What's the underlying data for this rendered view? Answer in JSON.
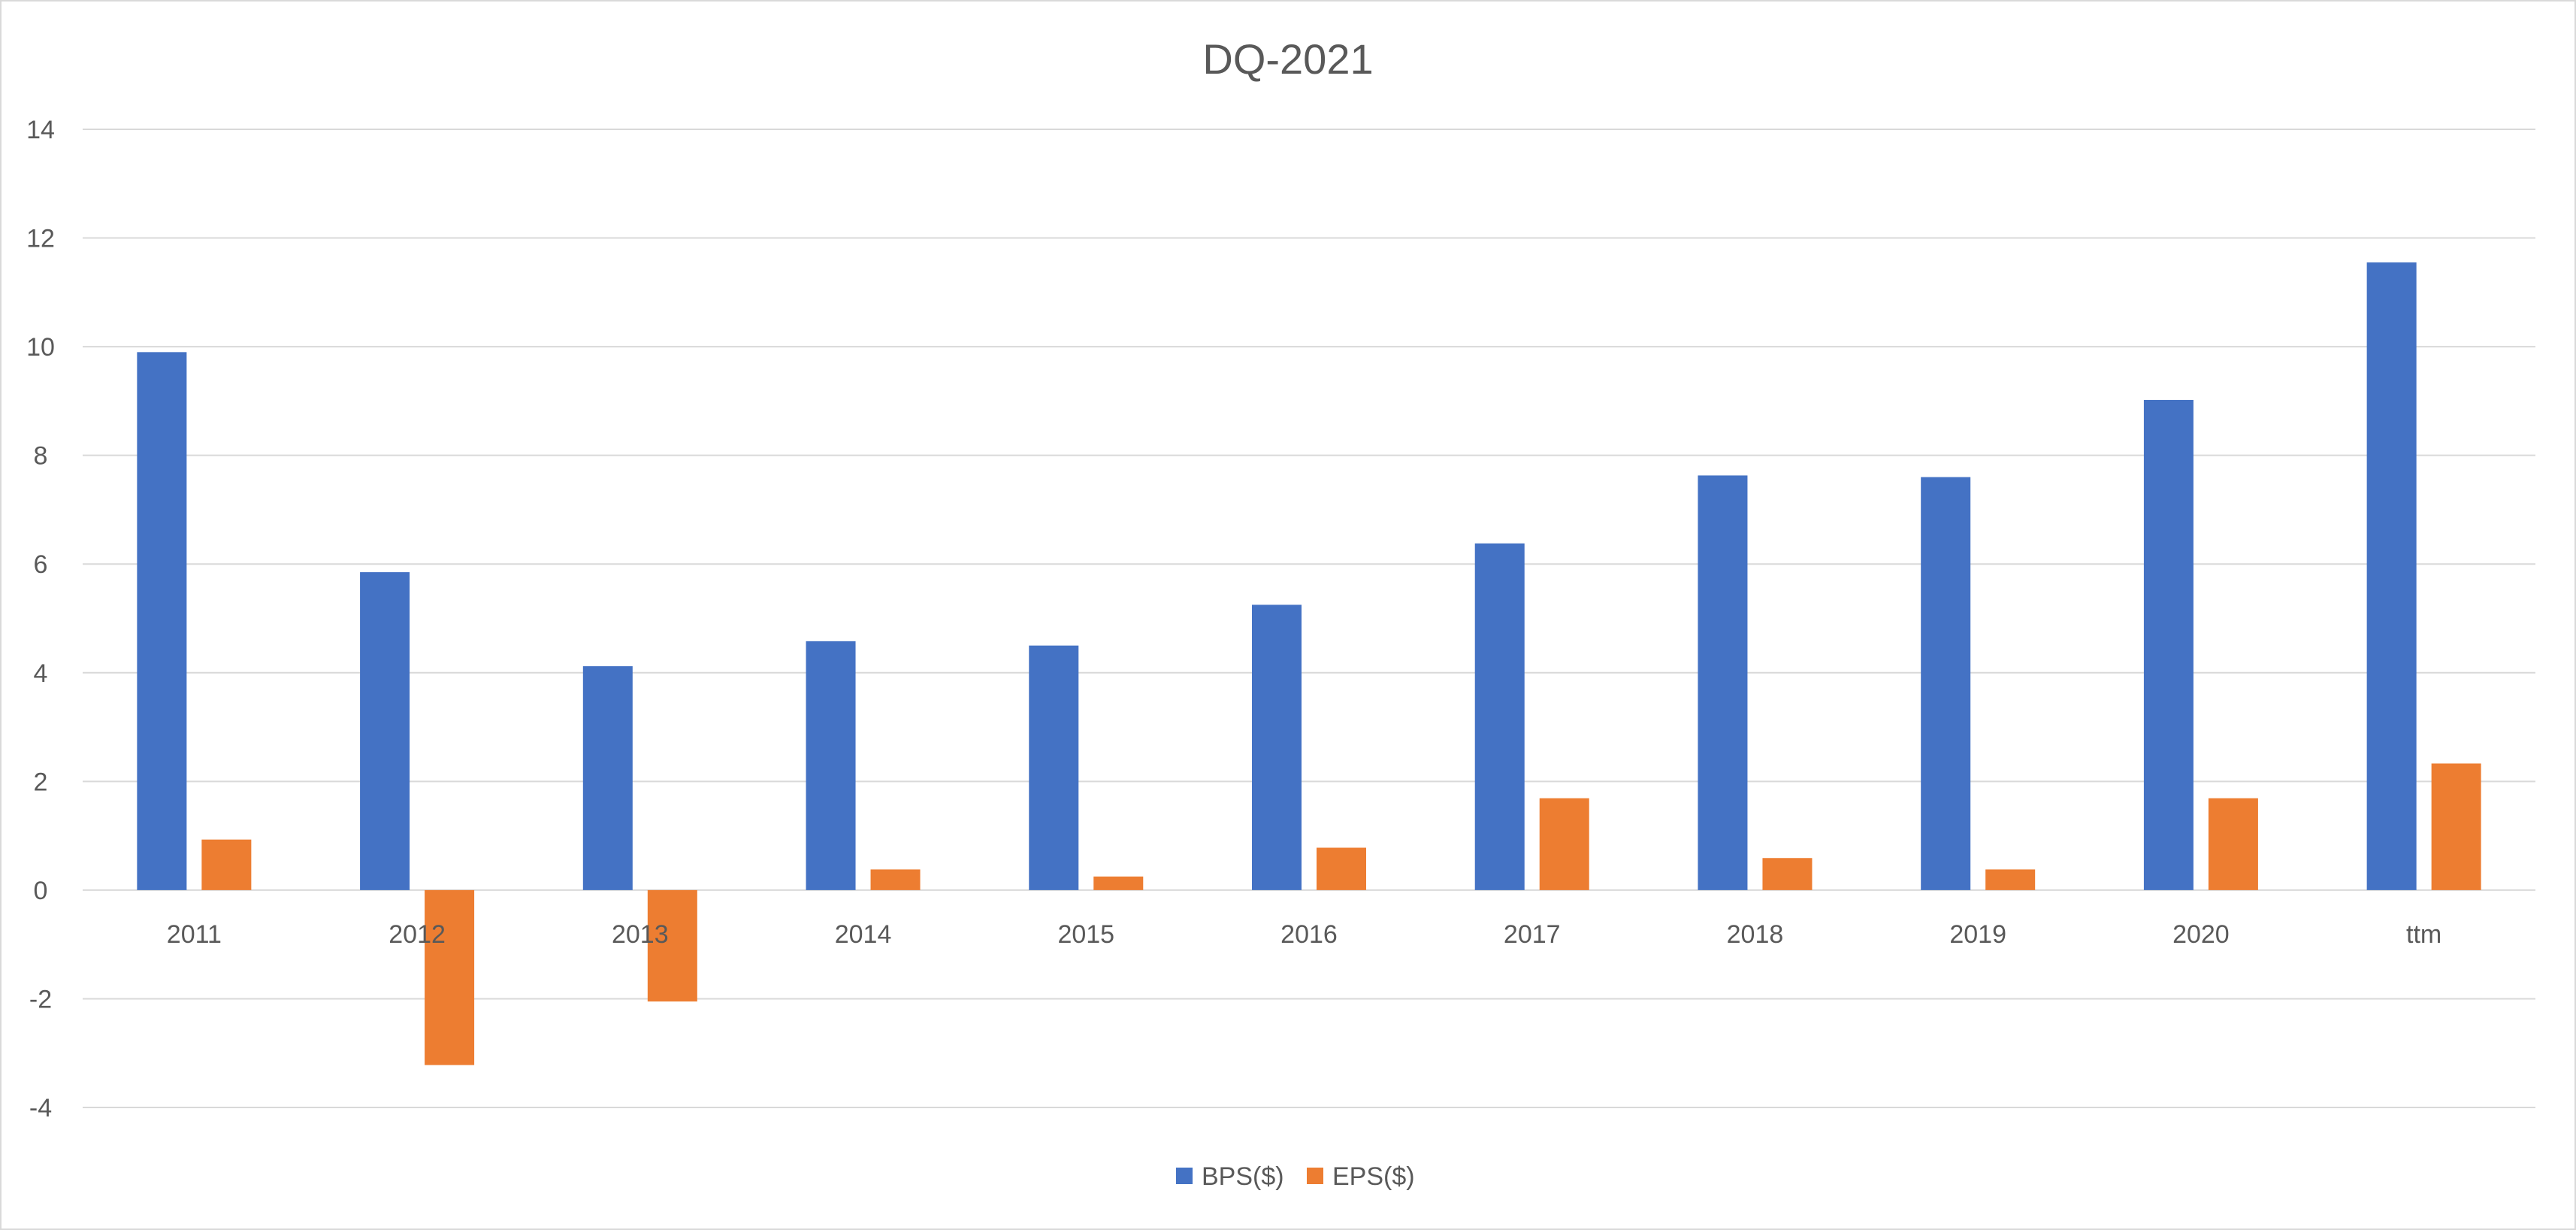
{
  "chart_data": {
    "type": "bar",
    "title": "DQ-2021",
    "xlabel": "",
    "ylabel": "",
    "categories": [
      "2011",
      "2012",
      "2013",
      "2014",
      "2015",
      "2016",
      "2017",
      "2018",
      "2019",
      "2020",
      "ttm"
    ],
    "series": [
      {
        "name": "BPS($)",
        "color": "#4472c4",
        "values": [
          9.9,
          5.85,
          4.12,
          4.58,
          4.5,
          5.25,
          6.38,
          7.63,
          7.6,
          9.02,
          11.55
        ]
      },
      {
        "name": "EPS($)",
        "color": "#ed7d31",
        "values": [
          0.93,
          -3.22,
          -2.05,
          0.38,
          0.25,
          0.78,
          1.69,
          0.59,
          0.38,
          1.69,
          2.33
        ]
      }
    ],
    "ylim": [
      -4,
      14
    ],
    "yticks": [
      -4,
      -2,
      0,
      2,
      4,
      6,
      8,
      10,
      12,
      14
    ],
    "grid": true,
    "legend_position": "bottom",
    "colors": {
      "grid": "#d9d9d9",
      "text": "#595959"
    }
  }
}
